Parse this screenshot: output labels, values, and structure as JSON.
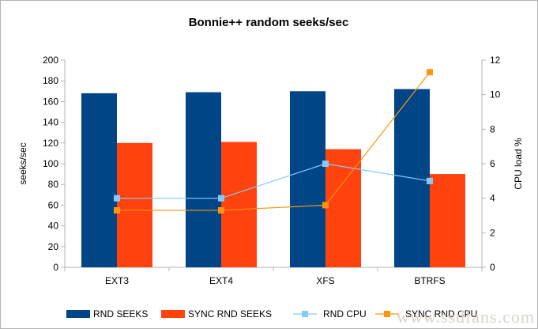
{
  "chart_data": {
    "type": "bar",
    "title": "Bonnie++ random seeks/sec",
    "categories": [
      "EXT3",
      "EXT4",
      "XFS",
      "BTRFS"
    ],
    "ylabel": "seeks/sec",
    "y2label": "CPU load %",
    "ylim": [
      0,
      200
    ],
    "y2lim": [
      0,
      12
    ],
    "yticks": [
      "0",
      "20",
      "40",
      "60",
      "80",
      "100",
      "120",
      "140",
      "160",
      "180",
      "200"
    ],
    "y2ticks": [
      "0",
      "2",
      "4",
      "6",
      "8",
      "10",
      "12"
    ],
    "grid": false,
    "legend_position": "bottom",
    "series": [
      {
        "name": "RND SEEKS",
        "kind": "bar",
        "axis": "left",
        "color": "#004586",
        "values": [
          168,
          169,
          170,
          172
        ]
      },
      {
        "name": "SYNC RND SEEKS",
        "kind": "bar",
        "axis": "left",
        "color": "#ff420e",
        "values": [
          120,
          121,
          114,
          90
        ]
      },
      {
        "name": "RND CPU",
        "kind": "line",
        "axis": "right",
        "color": "#83caff",
        "values": [
          4,
          4,
          6,
          5
        ]
      },
      {
        "name": "SYNC RND CPU",
        "kind": "line",
        "axis": "right",
        "color": "#ff950e",
        "values": [
          3.3,
          3.3,
          3.6,
          11.3
        ]
      }
    ]
  },
  "watermark": "www.ssdfans.com"
}
